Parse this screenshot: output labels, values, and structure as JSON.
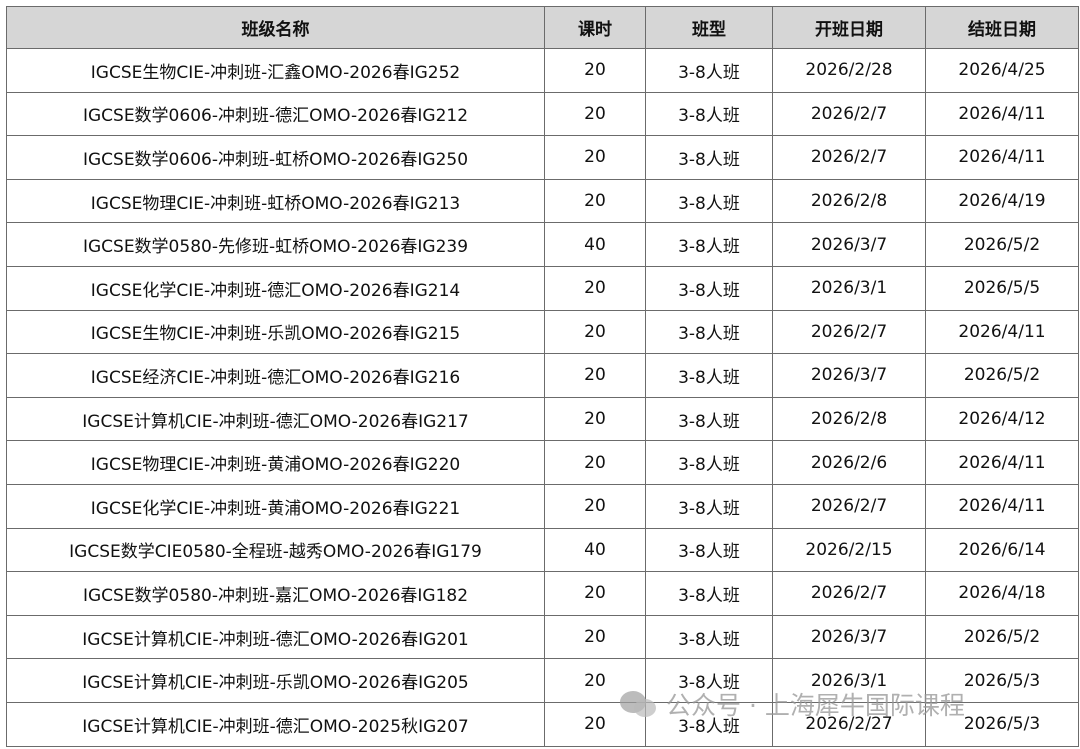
{
  "table": {
    "header": [
      "班级名称",
      "课时",
      "班型",
      "开班日期",
      "结班日期"
    ],
    "rows": [
      [
        "IGCSE生物CIE-冲刺班-汇鑫OMO-2026春IG252",
        20,
        "3-8人班",
        "2026/2/28",
        "2026/4/25"
      ],
      [
        "IGCSE数学0606-冲刺班-德汇OMO-2026春IG212",
        20,
        "3-8人班",
        "2026/2/7",
        "2026/4/11"
      ],
      [
        "IGCSE数学0606-冲刺班-虹桥OMO-2026春IG250",
        20,
        "3-8人班",
        "2026/2/7",
        "2026/4/11"
      ],
      [
        "IGCSE物理CIE-冲刺班-虹桥OMO-2026春IG213",
        20,
        "3-8人班",
        "2026/2/8",
        "2026/4/19"
      ],
      [
        "IGCSE数学0580-先修班-虹桥OMO-2026春IG239",
        40,
        "3-8人班",
        "2026/3/7",
        "2026/5/2"
      ],
      [
        "IGCSE化学CIE-冲刺班-德汇OMO-2026春IG214",
        20,
        "3-8人班",
        "2026/3/1",
        "2026/5/5"
      ],
      [
        "IGCSE生物CIE-冲刺班-乐凯OMO-2026春IG215",
        20,
        "3-8人班",
        "2026/2/7",
        "2026/4/11"
      ],
      [
        "IGCSE经济CIE-冲刺班-德汇OMO-2026春IG216",
        20,
        "3-8人班",
        "2026/3/7",
        "2026/5/2"
      ],
      [
        "IGCSE计算机CIE-冲刺班-德汇OMO-2026春IG217",
        20,
        "3-8人班",
        "2026/2/8",
        "2026/4/12"
      ],
      [
        "IGCSE物理CIE-冲刺班-黄浦OMO-2026春IG220",
        20,
        "3-8人班",
        "2026/2/6",
        "2026/4/11"
      ],
      [
        "IGCSE化学CIE-冲刺班-黄浦OMO-2026春IG221",
        20,
        "3-8人班",
        "2026/2/7",
        "2026/4/11"
      ],
      [
        "IGCSE数学CIE0580-全程班-越秀OMO-2026春IG179",
        40,
        "3-8人班",
        "2026/2/15",
        "2026/6/14"
      ],
      [
        "IGCSE数学0580-冲刺班-嘉汇OMO-2026春IG182",
        20,
        "3-8人班",
        "2026/2/7",
        "2026/4/18"
      ],
      [
        "IGCSE计算机CIE-冲刺班-德汇OMO-2026春IG201",
        20,
        "3-8人班",
        "2026/3/7",
        "2026/5/2"
      ],
      [
        "IGCSE计算机CIE-冲刺班-乐凯OMO-2026春IG205",
        20,
        "3-8人班",
        "2026/3/1",
        "2026/5/3"
      ],
      [
        "IGCSE计算机CIE-冲刺班-德汇OMO-2025秋IG207",
        20,
        "3-8人班",
        "2026/2/27",
        "2026/5/3"
      ]
    ]
  },
  "watermark": "公众号 · 上海犀牛国际课程"
}
